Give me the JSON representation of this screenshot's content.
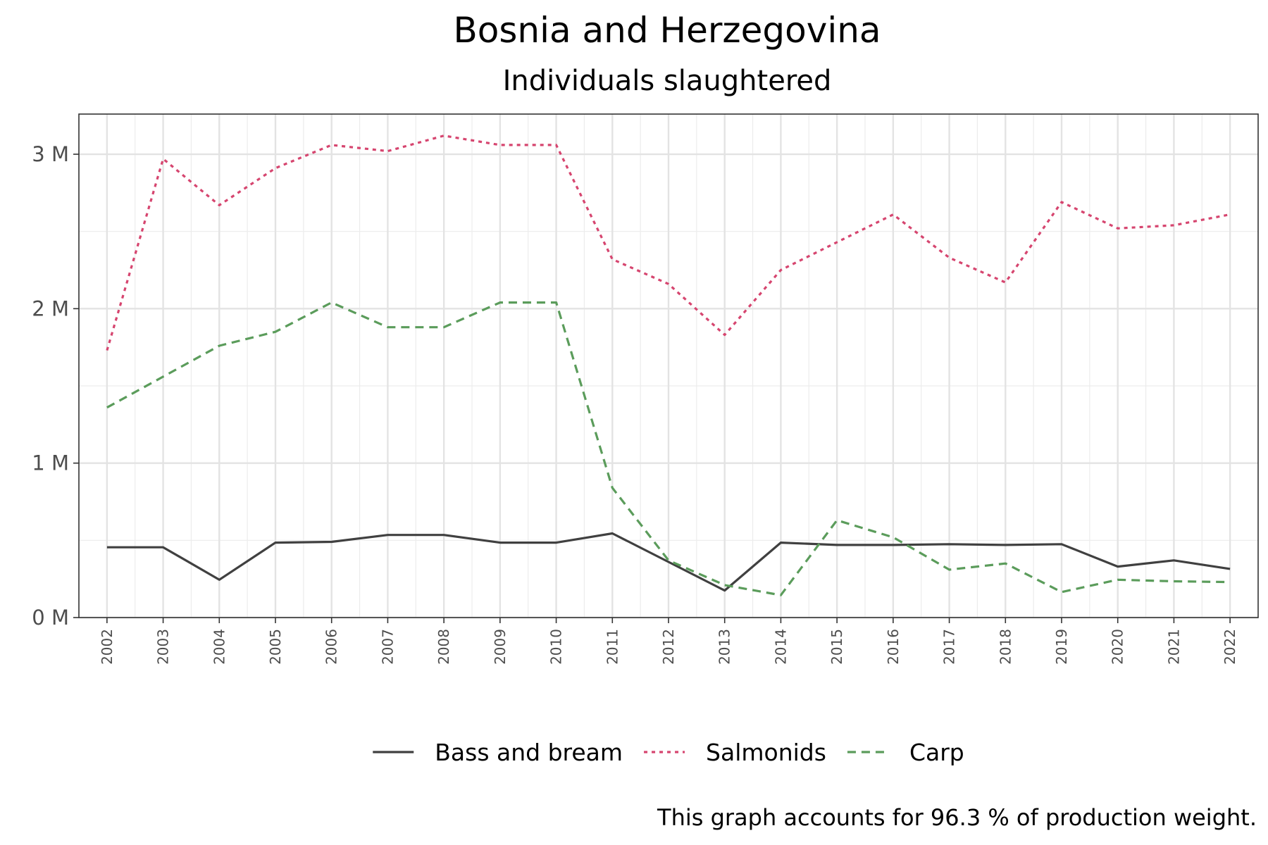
{
  "chart_data": {
    "type": "line",
    "title": "Bosnia and Herzegovina",
    "subtitle": "Individuals slaughtered",
    "xlabel": "",
    "ylabel": "",
    "caption": "This graph accounts for 96.3 % of production weight.",
    "x": [
      2002,
      2003,
      2004,
      2005,
      2006,
      2007,
      2008,
      2009,
      2010,
      2011,
      2012,
      2013,
      2014,
      2015,
      2016,
      2017,
      2018,
      2019,
      2020,
      2021,
      2022
    ],
    "x_tick_labels": [
      "2002",
      "2003",
      "2004",
      "2005",
      "2006",
      "2007",
      "2008",
      "2009",
      "2010",
      "2011",
      "2012",
      "2013",
      "2014",
      "2015",
      "2016",
      "2017",
      "2018",
      "2019",
      "2020",
      "2021",
      "2022"
    ],
    "xlim": [
      2001.5,
      2022.5
    ],
    "y_ticks": [
      0,
      1000000,
      2000000,
      3000000
    ],
    "y_tick_labels": [
      "0 M",
      "1 M",
      "2 M",
      "3 M"
    ],
    "ylim": [
      0,
      3260000
    ],
    "grid": true,
    "legend_position": "bottom",
    "series": [
      {
        "name": "Bass and bream",
        "color": "#404040",
        "dash": "solid",
        "values": [
          455000,
          455000,
          245000,
          485000,
          490000,
          535000,
          535000,
          485000,
          485000,
          545000,
          360000,
          175000,
          485000,
          470000,
          470000,
          475000,
          470000,
          475000,
          330000,
          370000,
          315000
        ]
      },
      {
        "name": "Salmonids",
        "color": "#d6456f",
        "dash": "dotted",
        "values": [
          1730000,
          2970000,
          2670000,
          2910000,
          3060000,
          3020000,
          3120000,
          3060000,
          3060000,
          2320000,
          2160000,
          1830000,
          2250000,
          2430000,
          2610000,
          2330000,
          2170000,
          2690000,
          2520000,
          2540000,
          2610000
        ]
      },
      {
        "name": "Carp",
        "color": "#5b9c5b",
        "dash": "dashed",
        "values": [
          1360000,
          1560000,
          1760000,
          1850000,
          2040000,
          1880000,
          1880000,
          2040000,
          2040000,
          840000,
          370000,
          210000,
          145000,
          630000,
          520000,
          310000,
          350000,
          165000,
          245000,
          235000,
          230000
        ]
      }
    ]
  }
}
